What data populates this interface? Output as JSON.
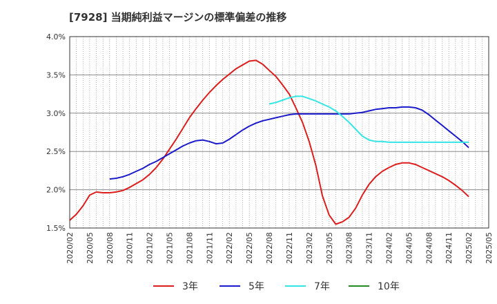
{
  "chart_data": {
    "type": "line",
    "title": "[7928]  当期純利益マージンの標準偏差の推移",
    "xlabel": "",
    "ylabel": "",
    "ylim": [
      1.5,
      4.0
    ],
    "yticks": [
      "1.5%",
      "2.0%",
      "2.5%",
      "3.0%",
      "3.5%",
      "4.0%"
    ],
    "xticks": [
      "2020/02",
      "2020/05",
      "2020/08",
      "2020/11",
      "2021/02",
      "2021/05",
      "2021/08",
      "2021/11",
      "2022/02",
      "2022/05",
      "2022/08",
      "2022/11",
      "2023/02",
      "2023/05",
      "2023/08",
      "2023/11",
      "2024/02",
      "2024/05",
      "2024/08",
      "2024/11",
      "2025/02",
      "2025/05"
    ],
    "grid": true,
    "legend_position": "bottom",
    "series": [
      {
        "name": "3年",
        "color": "#dd1c1c",
        "x": [
          "2020/02",
          "2020/03",
          "2020/04",
          "2020/05",
          "2020/06",
          "2020/07",
          "2020/08",
          "2020/09",
          "2020/10",
          "2020/11",
          "2020/12",
          "2021/01",
          "2021/02",
          "2021/03",
          "2021/04",
          "2021/05",
          "2021/06",
          "2021/07",
          "2021/08",
          "2021/09",
          "2021/10",
          "2021/11",
          "2021/12",
          "2022/01",
          "2022/02",
          "2022/03",
          "2022/04",
          "2022/05",
          "2022/06",
          "2022/07",
          "2022/08",
          "2022/09",
          "2022/10",
          "2022/11",
          "2022/12",
          "2023/01",
          "2023/02",
          "2023/03",
          "2023/04",
          "2023/05",
          "2023/06",
          "2023/07",
          "2023/08",
          "2023/09",
          "2023/10",
          "2023/11",
          "2023/12",
          "2024/01",
          "2024/02",
          "2024/03",
          "2024/04",
          "2024/05",
          "2024/06",
          "2024/07",
          "2024/08",
          "2024/09",
          "2024/10",
          "2024/11",
          "2024/12",
          "2025/01",
          "2025/02"
        ],
        "values": [
          1.6,
          1.68,
          1.79,
          1.93,
          1.97,
          1.96,
          1.96,
          1.97,
          1.99,
          2.03,
          2.08,
          2.13,
          2.2,
          2.29,
          2.4,
          2.53,
          2.66,
          2.8,
          2.94,
          3.06,
          3.17,
          3.27,
          3.36,
          3.44,
          3.51,
          3.58,
          3.63,
          3.68,
          3.69,
          3.64,
          3.56,
          3.48,
          3.37,
          3.25,
          3.07,
          2.88,
          2.63,
          2.32,
          1.92,
          1.67,
          1.55,
          1.58,
          1.64,
          1.76,
          1.93,
          2.07,
          2.17,
          2.24,
          2.29,
          2.33,
          2.35,
          2.35,
          2.33,
          2.29,
          2.25,
          2.21,
          2.17,
          2.12,
          2.06,
          1.99,
          1.91
        ]
      },
      {
        "name": "5年",
        "color": "#1a1acc",
        "x": [
          "2020/08",
          "2020/09",
          "2020/10",
          "2020/11",
          "2020/12",
          "2021/01",
          "2021/02",
          "2021/03",
          "2021/04",
          "2021/05",
          "2021/06",
          "2021/07",
          "2021/08",
          "2021/09",
          "2021/10",
          "2021/11",
          "2021/12",
          "2022/01",
          "2022/02",
          "2022/03",
          "2022/04",
          "2022/05",
          "2022/06",
          "2022/07",
          "2022/08",
          "2022/09",
          "2022/10",
          "2022/11",
          "2022/12",
          "2023/01",
          "2023/02",
          "2023/03",
          "2023/04",
          "2023/05",
          "2023/06",
          "2023/07",
          "2023/08",
          "2023/09",
          "2023/10",
          "2023/11",
          "2023/12",
          "2024/01",
          "2024/02",
          "2024/03",
          "2024/04",
          "2024/05",
          "2024/06",
          "2024/07",
          "2024/08",
          "2024/09",
          "2024/10",
          "2024/11",
          "2024/12",
          "2025/01",
          "2025/02"
        ],
        "values": [
          2.14,
          2.15,
          2.17,
          2.2,
          2.24,
          2.28,
          2.33,
          2.37,
          2.42,
          2.47,
          2.52,
          2.57,
          2.61,
          2.64,
          2.65,
          2.63,
          2.6,
          2.61,
          2.66,
          2.72,
          2.78,
          2.83,
          2.87,
          2.9,
          2.92,
          2.94,
          2.96,
          2.98,
          2.99,
          2.99,
          2.99,
          2.99,
          2.99,
          2.99,
          2.99,
          2.99,
          2.99,
          3.0,
          3.01,
          3.03,
          3.05,
          3.06,
          3.07,
          3.07,
          3.08,
          3.08,
          3.07,
          3.04,
          2.98,
          2.91,
          2.84,
          2.77,
          2.7,
          2.63,
          2.55
        ]
      },
      {
        "name": "7年",
        "color": "#33e5e5",
        "x": [
          "2022/08",
          "2022/09",
          "2022/10",
          "2022/11",
          "2022/12",
          "2023/01",
          "2023/02",
          "2023/03",
          "2023/04",
          "2023/05",
          "2023/06",
          "2023/07",
          "2023/08",
          "2023/09",
          "2023/10",
          "2023/11",
          "2023/12",
          "2024/01",
          "2024/02",
          "2024/03",
          "2024/04",
          "2024/05",
          "2024/06",
          "2024/07",
          "2024/08",
          "2024/09",
          "2024/10",
          "2024/11",
          "2024/12",
          "2025/01",
          "2025/02"
        ],
        "values": [
          3.12,
          3.14,
          3.17,
          3.2,
          3.22,
          3.22,
          3.19,
          3.16,
          3.12,
          3.08,
          3.03,
          2.96,
          2.88,
          2.79,
          2.7,
          2.65,
          2.63,
          2.63,
          2.62,
          2.62,
          2.62,
          2.62,
          2.62,
          2.62,
          2.62,
          2.62,
          2.62,
          2.62,
          2.62,
          2.62,
          2.62
        ]
      },
      {
        "name": "10年",
        "color": "#228b22",
        "x": [],
        "values": []
      }
    ]
  }
}
